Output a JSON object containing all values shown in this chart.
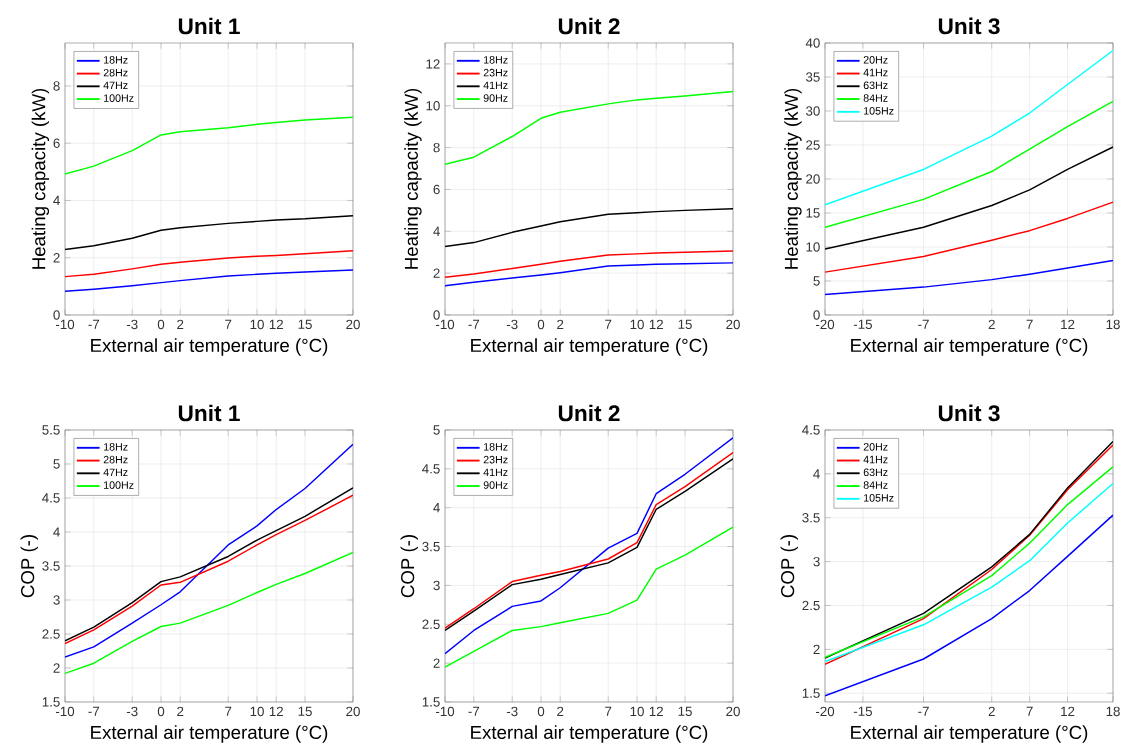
{
  "chart_data": [
    {
      "type": "line",
      "title": "Unit 1",
      "xlabel": "External air temperature (°C)",
      "ylabel": "Heating capacity (kW)",
      "x": [
        -10,
        -7,
        -3,
        0,
        2,
        7,
        10,
        12,
        15,
        20
      ],
      "xlim": [
        -10,
        20
      ],
      "xticks": [
        -10,
        -7,
        -3,
        0,
        2,
        7,
        10,
        12,
        15,
        20
      ],
      "ylim": [
        0,
        9.5
      ],
      "yticks": [
        0,
        2,
        4,
        6,
        8
      ],
      "grid": true,
      "legend": "top left",
      "series": [
        {
          "name": "18Hz",
          "color": "#0000ff",
          "values": [
            0.83,
            0.9,
            1.02,
            1.13,
            1.2,
            1.36,
            1.42,
            1.46,
            1.5,
            1.57
          ]
        },
        {
          "name": "28Hz",
          "color": "#ff0000",
          "values": [
            1.34,
            1.42,
            1.61,
            1.77,
            1.84,
            1.99,
            2.05,
            2.08,
            2.14,
            2.24
          ]
        },
        {
          "name": "47Hz",
          "color": "#000000",
          "values": [
            2.29,
            2.42,
            2.68,
            2.96,
            3.05,
            3.2,
            3.27,
            3.32,
            3.36,
            3.47
          ]
        },
        {
          "name": "100Hz",
          "color": "#00ff00",
          "values": [
            4.92,
            5.2,
            5.74,
            6.29,
            6.4,
            6.54,
            6.66,
            6.72,
            6.81,
            6.91
          ]
        }
      ]
    },
    {
      "type": "line",
      "title": "Unit 2",
      "xlabel": "External air temperature (°C)",
      "ylabel": "Heating capacity (kW)",
      "x": [
        -10,
        -7,
        -3,
        0,
        2,
        7,
        10,
        12,
        15,
        20
      ],
      "xlim": [
        -10,
        20
      ],
      "xticks": [
        -10,
        -7,
        -3,
        0,
        2,
        7,
        10,
        12,
        15,
        20
      ],
      "ylim": [
        0,
        13
      ],
      "yticks": [
        0,
        2,
        4,
        6,
        8,
        10,
        12
      ],
      "grid": true,
      "legend": "top left",
      "series": [
        {
          "name": "18Hz",
          "color": "#0000ff",
          "values": [
            1.4,
            1.56,
            1.77,
            1.91,
            2.02,
            2.34,
            2.39,
            2.42,
            2.45,
            2.49
          ]
        },
        {
          "name": "23Hz",
          "color": "#ff0000",
          "values": [
            1.8,
            1.96,
            2.22,
            2.42,
            2.57,
            2.87,
            2.92,
            2.96,
            3.0,
            3.06
          ]
        },
        {
          "name": "41Hz",
          "color": "#000000",
          "values": [
            3.27,
            3.46,
            3.95,
            4.25,
            4.46,
            4.81,
            4.89,
            4.94,
            5.0,
            5.08
          ]
        },
        {
          "name": "90Hz",
          "color": "#00ff00",
          "values": [
            7.2,
            7.54,
            8.53,
            9.4,
            9.69,
            10.09,
            10.28,
            10.36,
            10.47,
            10.68
          ]
        }
      ]
    },
    {
      "type": "line",
      "title": "Unit 3",
      "xlabel": "External air temperature (°C)",
      "ylabel": "Heating capacity (kW)",
      "x": [
        -20,
        -7,
        2,
        7,
        12,
        18
      ],
      "xlim": [
        -20,
        18
      ],
      "xticks": [
        -20,
        -15,
        -7,
        2,
        7,
        12,
        18
      ],
      "ylim": [
        0,
        40
      ],
      "yticks": [
        0,
        5,
        10,
        15,
        20,
        25,
        30,
        35,
        40
      ],
      "grid": true,
      "legend": "top left",
      "series": [
        {
          "name": "20Hz",
          "color": "#0000ff",
          "values": [
            3.0,
            4.1,
            5.2,
            6.0,
            6.9,
            8.0
          ]
        },
        {
          "name": "41Hz",
          "color": "#ff0000",
          "values": [
            6.3,
            8.6,
            11.0,
            12.4,
            14.2,
            16.6
          ]
        },
        {
          "name": "63Hz",
          "color": "#000000",
          "values": [
            9.7,
            12.9,
            16.1,
            18.4,
            21.4,
            24.7
          ]
        },
        {
          "name": "84Hz",
          "color": "#00ff00",
          "values": [
            12.9,
            17.0,
            21.1,
            24.4,
            27.7,
            31.4
          ]
        },
        {
          "name": "105Hz",
          "color": "#00ffff",
          "values": [
            16.2,
            21.4,
            26.3,
            29.7,
            33.9,
            38.9
          ]
        }
      ]
    },
    {
      "type": "line",
      "title": "Unit 1",
      "xlabel": "External air temperature (°C)",
      "ylabel": "COP (-)",
      "x": [
        -10,
        -7,
        -3,
        0,
        2,
        7,
        10,
        12,
        15,
        20
      ],
      "xlim": [
        -10,
        20
      ],
      "xticks": [
        -10,
        -7,
        -3,
        0,
        2,
        7,
        10,
        12,
        15,
        20
      ],
      "ylim": [
        1.5,
        5.5
      ],
      "yticks": [
        1.5,
        2,
        2.5,
        3,
        3.5,
        4,
        4.5,
        5,
        5.5
      ],
      "grid": true,
      "legend": "top left",
      "series": [
        {
          "name": "18Hz",
          "color": "#0000ff",
          "values": [
            2.16,
            2.31,
            2.66,
            2.93,
            3.12,
            3.81,
            4.09,
            4.33,
            4.64,
            5.29
          ]
        },
        {
          "name": "28Hz",
          "color": "#ff0000",
          "values": [
            2.36,
            2.56,
            2.91,
            3.22,
            3.26,
            3.57,
            3.81,
            3.96,
            4.17,
            4.54
          ]
        },
        {
          "name": "47Hz",
          "color": "#000000",
          "values": [
            2.4,
            2.6,
            2.96,
            3.27,
            3.34,
            3.64,
            3.88,
            4.02,
            4.23,
            4.65
          ]
        },
        {
          "name": "100Hz",
          "color": "#00ff00",
          "values": [
            1.92,
            2.07,
            2.39,
            2.61,
            2.66,
            2.92,
            3.11,
            3.23,
            3.39,
            3.7
          ]
        }
      ]
    },
    {
      "type": "line",
      "title": "Unit 2",
      "xlabel": "External air temperature (°C)",
      "ylabel": "COP (-)",
      "x": [
        -10,
        -7,
        -3,
        0,
        2,
        7,
        10,
        12,
        15,
        20
      ],
      "xlim": [
        -10,
        20
      ],
      "xticks": [
        -10,
        -7,
        -3,
        0,
        2,
        7,
        10,
        12,
        15,
        20
      ],
      "ylim": [
        1.5,
        5
      ],
      "yticks": [
        1.5,
        2,
        2.5,
        3,
        3.5,
        4,
        4.5,
        5
      ],
      "grid": true,
      "legend": "top left",
      "series": [
        {
          "name": "18Hz",
          "color": "#0000ff",
          "values": [
            2.12,
            2.42,
            2.73,
            2.8,
            2.97,
            3.48,
            3.67,
            4.18,
            4.43,
            4.9
          ]
        },
        {
          "name": "23Hz",
          "color": "#ff0000",
          "values": [
            2.45,
            2.7,
            3.05,
            3.13,
            3.18,
            3.34,
            3.55,
            4.04,
            4.27,
            4.71
          ]
        },
        {
          "name": "41Hz",
          "color": "#000000",
          "values": [
            2.42,
            2.67,
            3.01,
            3.08,
            3.14,
            3.29,
            3.49,
            3.98,
            4.21,
            4.63
          ]
        },
        {
          "name": "90Hz",
          "color": "#00ff00",
          "values": [
            1.95,
            2.15,
            2.42,
            2.47,
            2.52,
            2.64,
            2.81,
            3.21,
            3.39,
            3.75
          ]
        }
      ]
    },
    {
      "type": "line",
      "title": "Unit 3",
      "xlabel": "External air temperature (°C)",
      "ylabel": "COP (-)",
      "x": [
        -20,
        -7,
        2,
        7,
        12,
        18
      ],
      "xlim": [
        -20,
        18
      ],
      "xticks": [
        -20,
        -15,
        -7,
        2,
        7,
        12,
        18
      ],
      "ylim": [
        1.4,
        4.5
      ],
      "yticks": [
        1.5,
        2,
        2.5,
        3,
        3.5,
        4,
        4.5
      ],
      "grid": true,
      "legend": "top left",
      "series": [
        {
          "name": "20Hz",
          "color": "#0000ff",
          "values": [
            1.47,
            1.89,
            2.35,
            2.67,
            3.06,
            3.53
          ]
        },
        {
          "name": "41Hz",
          "color": "#ff0000",
          "values": [
            1.83,
            2.35,
            2.91,
            3.3,
            3.82,
            4.33
          ]
        },
        {
          "name": "63Hz",
          "color": "#000000",
          "values": [
            1.9,
            2.41,
            2.94,
            3.31,
            3.84,
            4.37
          ]
        },
        {
          "name": "84Hz",
          "color": "#00ff00",
          "values": [
            1.91,
            2.37,
            2.84,
            3.21,
            3.65,
            4.08
          ]
        },
        {
          "name": "105Hz",
          "color": "#00ffff",
          "values": [
            1.86,
            2.28,
            2.71,
            3.01,
            3.44,
            3.89
          ]
        }
      ]
    }
  ]
}
